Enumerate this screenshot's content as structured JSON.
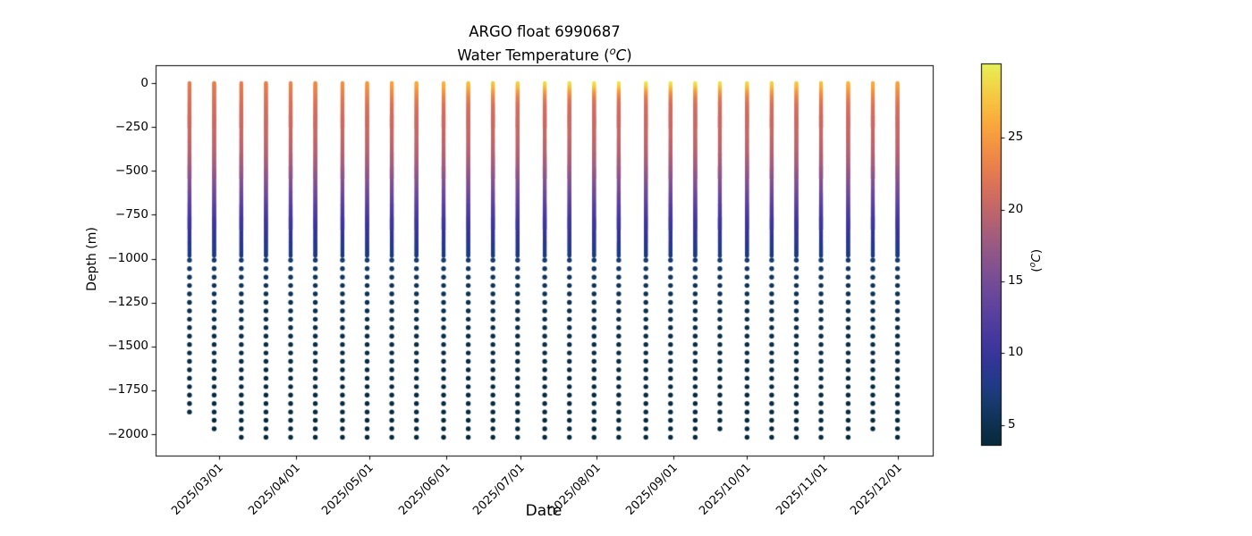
{
  "chart_data": {
    "type": "scatter",
    "title": "ARGO float 6990687",
    "subtitle": {
      "pre": "Water Temperature (",
      "sup": "o",
      "unit": "C",
      "post": ")"
    },
    "xlabel": "Date",
    "ylabel": "Depth (m)",
    "grid": false,
    "legend_position": "none (colorbar on right)",
    "x_tick_labels": [
      "2025/03/01",
      "2025/04/01",
      "2025/05/01",
      "2025/06/01",
      "2025/07/01",
      "2025/08/01",
      "2025/09/01",
      "2025/10/01",
      "2025/11/01",
      "2025/12/01"
    ],
    "y_tick_labels": [
      "0",
      "−250",
      "−500",
      "−750",
      "−1000",
      "−1250",
      "−1500",
      "−1750",
      "−2000"
    ],
    "y_tick_values": [
      0,
      -250,
      -500,
      -750,
      -1000,
      -1250,
      -1500,
      -1750,
      -2000
    ],
    "ylim": [
      102,
      -2122
    ],
    "xlim_dates": [
      "2025/02/03",
      "2025/12/15"
    ],
    "colorbar": {
      "label": {
        "pre": "(",
        "sup": "o",
        "unit": "C",
        "post": ")"
      },
      "ticks": [
        5,
        10,
        15,
        20,
        25
      ],
      "vmin": 3.6,
      "vmax": 30.2,
      "colormap": "thermal (dark navy → indigo → purple → salmon → orange → yellow)",
      "stops": [
        {
          "t": 3.6,
          "c": "#07293b"
        },
        {
          "t": 5.0,
          "c": "#0d3150"
        },
        {
          "t": 6.5,
          "c": "#163a6d"
        },
        {
          "t": 8.0,
          "c": "#223a8a"
        },
        {
          "t": 9.5,
          "c": "#333597"
        },
        {
          "t": 11.0,
          "c": "#45379e"
        },
        {
          "t": 12.5,
          "c": "#563f9f"
        },
        {
          "t": 14.0,
          "c": "#69479b"
        },
        {
          "t": 15.5,
          "c": "#7c4f93"
        },
        {
          "t": 17.0,
          "c": "#915788"
        },
        {
          "t": 18.5,
          "c": "#a85e7a"
        },
        {
          "t": 20.0,
          "c": "#c1666a"
        },
        {
          "t": 21.5,
          "c": "#d8705a"
        },
        {
          "t": 23.0,
          "c": "#e9804c"
        },
        {
          "t": 24.5,
          "c": "#f49342"
        },
        {
          "t": 26.0,
          "c": "#f9a93c"
        },
        {
          "t": 27.5,
          "c": "#f7c23f"
        },
        {
          "t": 29.0,
          "c": "#efdc4a"
        },
        {
          "t": 30.2,
          "c": "#e6f15a"
        }
      ]
    },
    "sampling": {
      "continuous_upper_from_m": 0,
      "continuous_upper_to_m": -985,
      "continuous_step_m": 5,
      "deep_dot_start_m": -1009,
      "deep_dot_step_m": -48
    },
    "base_temp_profile_points": [
      [
        0,
        21.9
      ],
      [
        -80,
        21.3
      ],
      [
        -150,
        20.9
      ],
      [
        -300,
        20.3
      ],
      [
        -400,
        19.3
      ],
      [
        -480,
        18.0
      ],
      [
        -550,
        16.4
      ],
      [
        -620,
        14.8
      ],
      [
        -700,
        12.8
      ],
      [
        -780,
        11.0
      ],
      [
        -850,
        9.8
      ],
      [
        -910,
        8.8
      ],
      [
        -960,
        7.9
      ],
      [
        -995,
        7.2
      ],
      [
        -1005,
        6.6
      ],
      [
        -1060,
        5.9
      ],
      [
        -1150,
        5.3
      ],
      [
        -1300,
        4.7
      ],
      [
        -1500,
        4.2
      ],
      [
        -1750,
        3.8
      ],
      [
        -2017,
        3.6
      ]
    ],
    "profiles": [
      {
        "date": "2025/02/17",
        "sst_c": 22.7,
        "bottom_m": -1873
      },
      {
        "date": "2025/02/27",
        "sst_c": 22.7,
        "bottom_m": -1969
      },
      {
        "date": "2025/03/10",
        "sst_c": 22.9,
        "bottom_m": -2017
      },
      {
        "date": "2025/03/20",
        "sst_c": 23.1,
        "bottom_m": -2017
      },
      {
        "date": "2025/03/30",
        "sst_c": 23.5,
        "bottom_m": -2017
      },
      {
        "date": "2025/04/09",
        "sst_c": 23.9,
        "bottom_m": -2017
      },
      {
        "date": "2025/04/20",
        "sst_c": 24.4,
        "bottom_m": -2017
      },
      {
        "date": "2025/04/30",
        "sst_c": 25.0,
        "bottom_m": -2017
      },
      {
        "date": "2025/05/10",
        "sst_c": 25.6,
        "bottom_m": -2017
      },
      {
        "date": "2025/05/20",
        "sst_c": 26.2,
        "bottom_m": -2017
      },
      {
        "date": "2025/05/31",
        "sst_c": 26.9,
        "bottom_m": -2017
      },
      {
        "date": "2025/06/10",
        "sst_c": 27.5,
        "bottom_m": -2017
      },
      {
        "date": "2025/06/20",
        "sst_c": 28.0,
        "bottom_m": -2017
      },
      {
        "date": "2025/06/30",
        "sst_c": 28.6,
        "bottom_m": -2017
      },
      {
        "date": "2025/07/11",
        "sst_c": 29.0,
        "bottom_m": -2017
      },
      {
        "date": "2025/07/21",
        "sst_c": 29.4,
        "bottom_m": -2017
      },
      {
        "date": "2025/07/31",
        "sst_c": 29.7,
        "bottom_m": -2017
      },
      {
        "date": "2025/08/10",
        "sst_c": 29.8,
        "bottom_m": -2017
      },
      {
        "date": "2025/08/21",
        "sst_c": 29.9,
        "bottom_m": -2017
      },
      {
        "date": "2025/08/31",
        "sst_c": 29.8,
        "bottom_m": -2017
      },
      {
        "date": "2025/09/10",
        "sst_c": 29.7,
        "bottom_m": -2017
      },
      {
        "date": "2025/09/20",
        "sst_c": 29.4,
        "bottom_m": -1969
      },
      {
        "date": "2025/10/01",
        "sst_c": 29.0,
        "bottom_m": -2017
      },
      {
        "date": "2025/10/11",
        "sst_c": 28.6,
        "bottom_m": -2017
      },
      {
        "date": "2025/10/21",
        "sst_c": 28.1,
        "bottom_m": -2017
      },
      {
        "date": "2025/10/31",
        "sst_c": 27.5,
        "bottom_m": -2017
      },
      {
        "date": "2025/11/11",
        "sst_c": 26.9,
        "bottom_m": -2017
      },
      {
        "date": "2025/11/21",
        "sst_c": 26.3,
        "bottom_m": -1969
      },
      {
        "date": "2025/12/01",
        "sst_c": 25.6,
        "bottom_m": -2017
      }
    ]
  }
}
